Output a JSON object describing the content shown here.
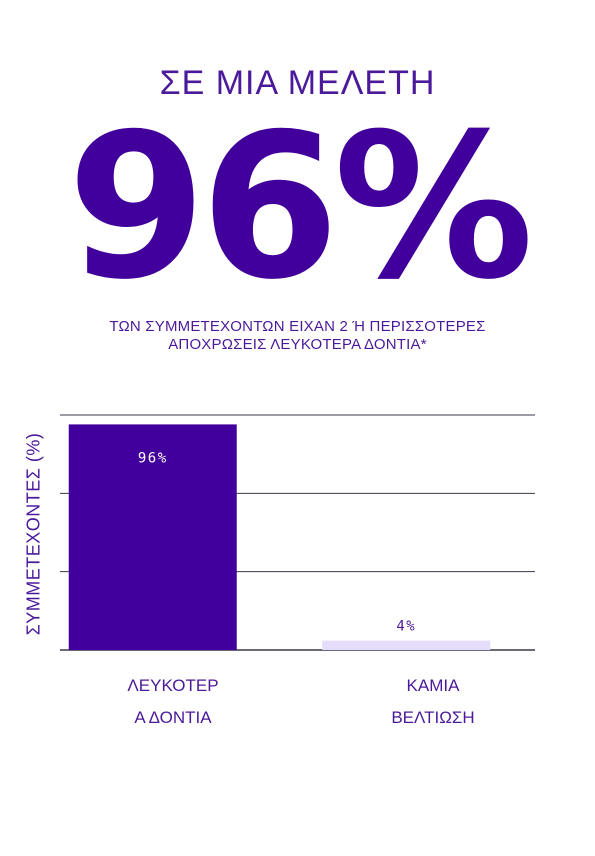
{
  "header": {
    "eyebrow": "ΣΕ ΜΙΑ ΜΕΛΕΤΗ",
    "stat": "96%",
    "subtitle_line1": "ΤΩΝ ΣΥΜΜΕΤΕΧΟΝΤΩΝ ΕΙΧΑΝ 2 Ή ΠΕΡΙΣΣΟΤΕΡΕΣ",
    "subtitle_line2": "ΑΠΟΧΡΩΣΕΙΣ ΛΕΥΚΟΤΕΡΑ ΔΟΝΤΙΑ*"
  },
  "chart_data": {
    "type": "bar",
    "ylabel": "ΣΥΜΜΕΤΕΧΟΝΤΕΣ (%)",
    "xlabel": "",
    "ylim": [
      0,
      100
    ],
    "grid": true,
    "categories": [
      {
        "line1": "ΛΕΥΚΟΤΕΡ",
        "line2": "Α ΔΟΝΤΙΑ"
      },
      {
        "line1": "ΚΑΜΙΑ",
        "line2": "ΒΕΛΤΙΩΣΗ"
      }
    ],
    "values": [
      96,
      4
    ],
    "data_labels": [
      "96%",
      "4%"
    ],
    "colors": {
      "bar_primary": "#41009b",
      "bar_secondary": "#e6dcfb",
      "label_on_dark": "#ffffff",
      "label_on_light": "#4a1a9a",
      "grid": "#3a3a4a"
    }
  }
}
